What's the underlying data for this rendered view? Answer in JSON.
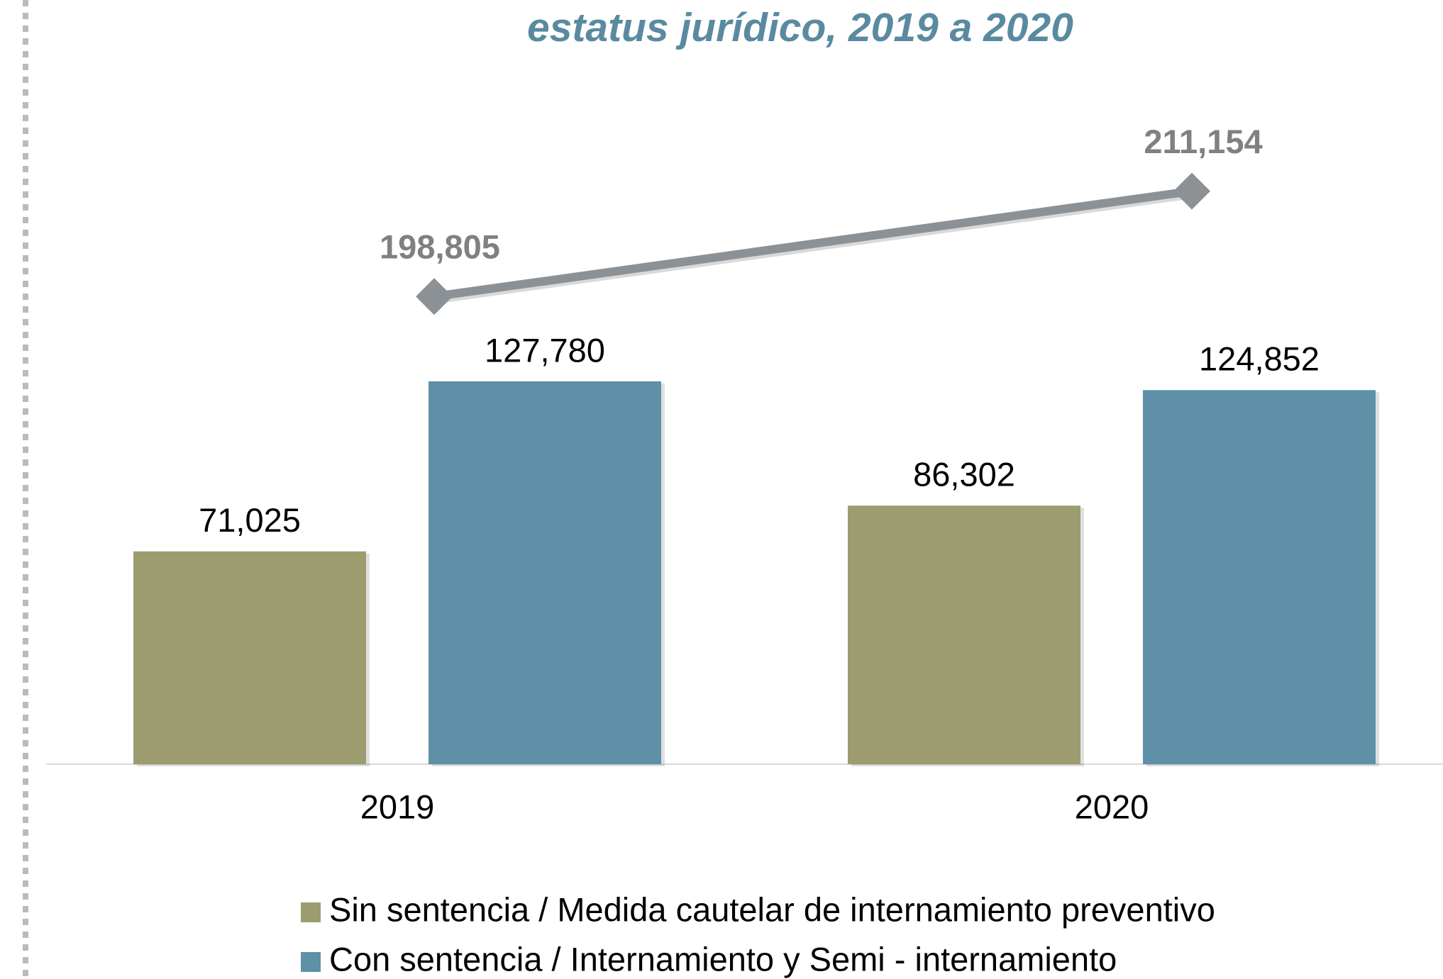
{
  "chart_data": {
    "type": "bar",
    "title": "estatus jurídico, 2019 a 2020",
    "categories": [
      "2019",
      "2020"
    ],
    "series": [
      {
        "name": "Sin sentencia / Medida cautelar de internamiento preventivo",
        "color": "#9c9c6f",
        "values": [
          71025,
          86302
        ],
        "value_labels": [
          "71,025",
          "86,302"
        ]
      },
      {
        "name": "Con sentencia / Internamiento y Semi - internamiento",
        "color": "#5e90a8",
        "values": [
          127780,
          124852
        ],
        "value_labels": [
          "127,780",
          "124,852"
        ]
      },
      {
        "type": "line",
        "axis": "y2",
        "color": "#8c9196",
        "values": [
          198805,
          211154
        ],
        "value_labels": [
          "198,805",
          "211,154"
        ]
      }
    ],
    "ylim": [
      0,
      225000
    ],
    "y2lim": [
      144000,
      223000
    ],
    "legend": "bottom"
  }
}
